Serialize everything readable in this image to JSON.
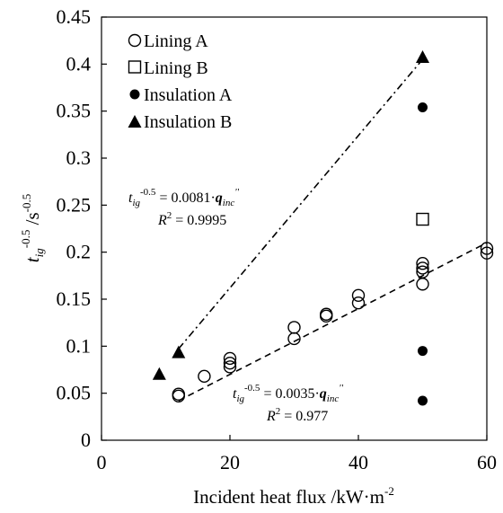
{
  "chart_data": {
    "type": "scatter",
    "xlabel": "Incident heat flux /kW·m",
    "xlabel_sup": "-2",
    "ylabel": "t",
    "ylabel_sub": "ig",
    "ylabel_sup": "-0.5",
    "ylabel_unit": " /s",
    "ylabel_unit_sup": "-0.5",
    "xlim": [
      0,
      60
    ],
    "ylim": [
      0,
      0.45
    ],
    "x_ticks": [
      0,
      20,
      40,
      60
    ],
    "x_tick_labels": [
      "0",
      "20",
      "40",
      "60"
    ],
    "y_ticks": [
      0,
      0.05,
      0.1,
      0.15,
      0.2,
      0.25,
      0.3,
      0.35,
      0.4,
      0.45
    ],
    "y_tick_labels": [
      "0",
      "0.05",
      "0.1",
      "0.15",
      "0.2",
      "0.25",
      "0.3",
      "0.35",
      "0.4",
      "0.45"
    ],
    "grid": false,
    "legend_position": "top-left",
    "series": [
      {
        "name": "Lining A",
        "marker": "open-circle",
        "points": [
          [
            12,
            0.047
          ],
          [
            12,
            0.049
          ],
          [
            16,
            0.068
          ],
          [
            20,
            0.078
          ],
          [
            20,
            0.082
          ],
          [
            20,
            0.087
          ],
          [
            30,
            0.108
          ],
          [
            30,
            0.12
          ],
          [
            35,
            0.132
          ],
          [
            35,
            0.134
          ],
          [
            40,
            0.146
          ],
          [
            40,
            0.154
          ],
          [
            50,
            0.166
          ],
          [
            50,
            0.179
          ],
          [
            50,
            0.183
          ],
          [
            50,
            0.188
          ],
          [
            60,
            0.199
          ],
          [
            60,
            0.204
          ]
        ]
      },
      {
        "name": "Lining B",
        "marker": "open-square",
        "points": [
          [
            50,
            0.235
          ]
        ]
      },
      {
        "name": "Insulation A",
        "marker": "filled-circle",
        "points": [
          [
            50,
            0.042
          ],
          [
            50,
            0.095
          ],
          [
            50,
            0.354
          ]
        ]
      },
      {
        "name": "Insulation B",
        "marker": "filled-triangle",
        "points": [
          [
            9,
            0.07
          ],
          [
            12,
            0.093
          ],
          [
            50,
            0.407
          ]
        ]
      }
    ],
    "trendlines": [
      {
        "style": "dash-dot",
        "x_range": [
          12,
          50
        ],
        "slope": 0.0081,
        "label_prefix": "t",
        "label_sub": "ig",
        "label_sup": "-0.5",
        "label_equals": " = 0.0081·",
        "label_q": "q",
        "label_q_sub": "inc",
        "label_q_sup": "''",
        "r2_R": "R",
        "r2_sup": "2",
        "r2_value": " = 0.9995"
      },
      {
        "style": "dashed",
        "x_range": [
          12,
          60
        ],
        "slope": 0.0035,
        "label_prefix": "t",
        "label_sub": "ig",
        "label_sup": "-0.5",
        "label_equals": " = 0.0035·",
        "label_q": "q",
        "label_q_sub": "inc",
        "label_q_sup": "''",
        "r2_R": "R",
        "r2_sup": "2",
        "r2_value": " = 0.977"
      }
    ],
    "colors": {
      "marker": "#000000",
      "axis": "#000000"
    }
  }
}
